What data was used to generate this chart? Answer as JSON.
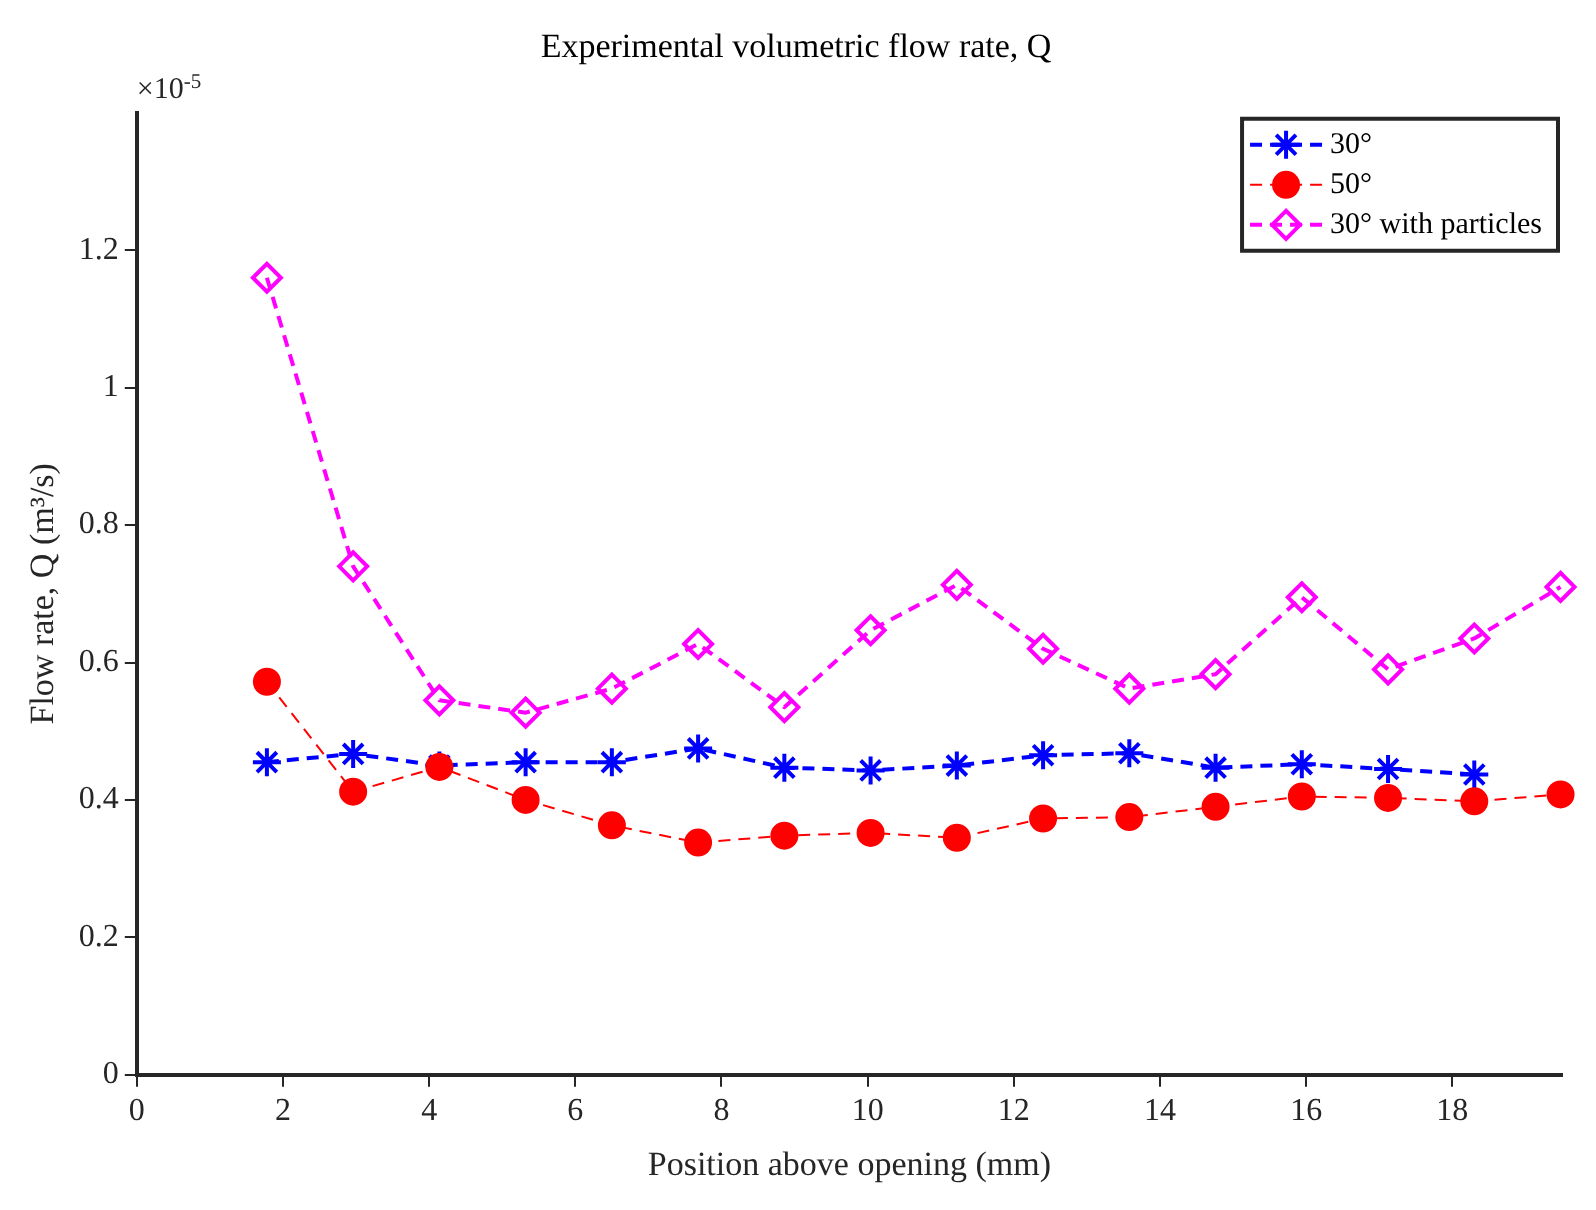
{
  "chart_data": {
    "type": "line",
    "title": "Experimental volumetric flow rate, Q",
    "xlabel": "Position above opening (mm)",
    "ylabel": "Flow rate, Q (m³/s)",
    "annotations": [
      "×10$^{-5}$"
    ],
    "xlim": [
      0,
      19.5
    ],
    "xticks": [
      0,
      2,
      4,
      6,
      8,
      10,
      12,
      14,
      16,
      18
    ],
    "ylim": [
      0,
      1.4
    ],
    "yticks": [
      0,
      {
        "value": 0.2,
        "label": "0.2"
      },
      {
        "value": 0.4,
        "label": "0.4"
      },
      {
        "value": 0.6,
        "label": "0.6"
      },
      {
        "value": 0.8,
        "label": "0.8"
      },
      1,
      {
        "value": 1.2,
        "label": "1.2"
      }
    ],
    "grid": false,
    "legend": "top right",
    "line_style": "dashed",
    "series": [
      {
        "name": "30°",
        "color": "#0000ff",
        "marker": "cross",
        "x": [
          1.78,
          2.96,
          4.14,
          5.32,
          6.5,
          7.68,
          8.86,
          10.04,
          11.22,
          12.4,
          13.58,
          14.76,
          15.94,
          17.12,
          18.3
        ],
        "values": [
          0.455,
          0.467,
          0.45,
          0.455,
          0.455,
          0.475,
          0.447,
          0.443,
          0.45,
          0.465,
          0.468,
          0.447,
          0.452,
          0.445,
          0.437
        ]
      },
      {
        "name": "50°",
        "color": "#ff0000",
        "marker": "circle",
        "x": [
          1.78,
          2.96,
          4.14,
          5.32,
          6.5,
          7.68,
          8.86,
          10.04,
          11.22,
          12.4,
          13.58,
          14.76,
          15.94,
          17.12,
          18.3,
          19.48
        ],
        "values": [
          0.572,
          0.412,
          0.448,
          0.4,
          0.363,
          0.338,
          0.348,
          0.352,
          0.345,
          0.373,
          0.375,
          0.39,
          0.405,
          0.403,
          0.398,
          0.408
        ]
      },
      {
        "name": "30° with particles",
        "color": "#ff00ff",
        "marker": "diamond",
        "x": [
          1.78,
          2.96,
          4.14,
          5.32,
          6.5,
          7.68,
          8.86,
          10.04,
          11.22,
          12.4,
          13.58,
          14.76,
          15.94,
          17.12,
          18.3,
          19.48
        ],
        "values": [
          1.16,
          0.74,
          0.545,
          0.527,
          0.562,
          0.627,
          0.535,
          0.647,
          0.713,
          0.62,
          0.562,
          0.583,
          0.695,
          0.59,
          0.635,
          0.71
        ]
      }
    ]
  }
}
